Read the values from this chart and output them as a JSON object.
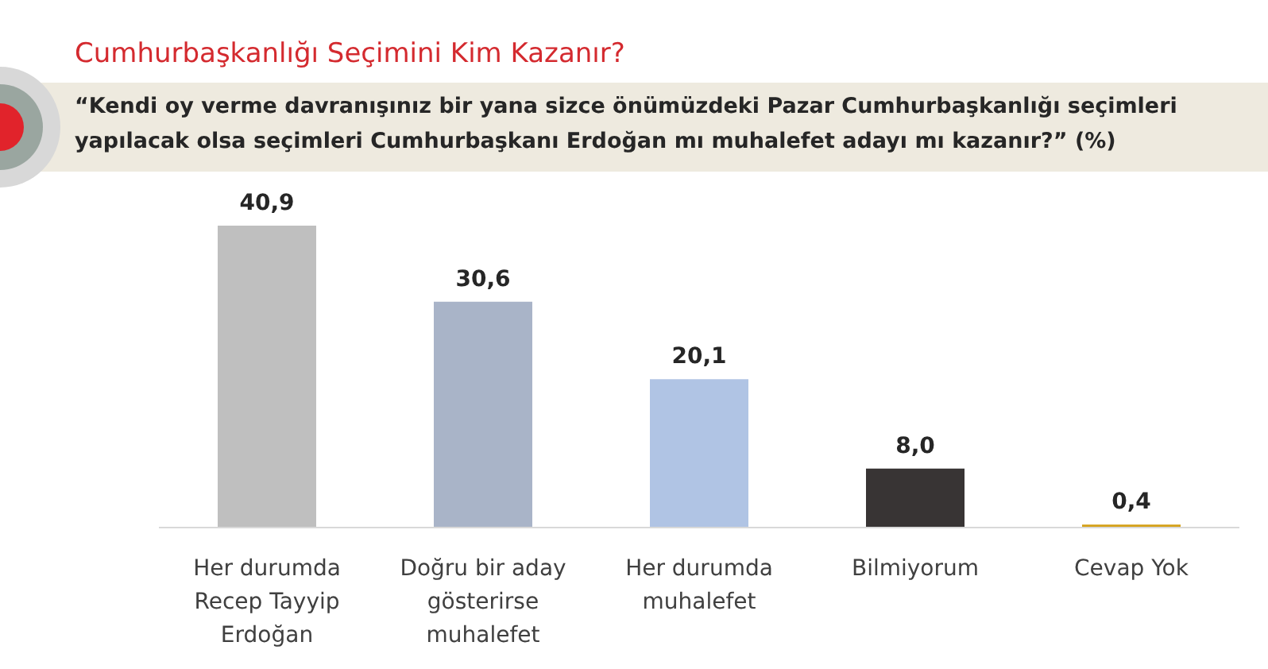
{
  "chart_data": {
    "type": "bar",
    "title": "Cumhurbaşkanlığı Seçimini Kim Kazanır?",
    "subtitle": "“Kendi oy verme davranışınız bir yana sizce önümüzdeki Pazar Cumhurbaşkanlığı seçimleri yapılacak olsa seçimleri Cumhurbaşkanı Erdoğan mı muhalefet adayı mı kazanır?” (%)",
    "categories": [
      "Her durumda Recep Tayyip Erdoğan",
      "Doğru bir aday gösterirse muhalefet",
      "Her durumda muhalefet",
      "Bilmiyorum",
      "Cevap Yok"
    ],
    "values": [
      40.9,
      30.6,
      20.1,
      8.0,
      0.4
    ],
    "value_labels": [
      "40,9",
      "30,6",
      "20,1",
      "8,0",
      "0,4"
    ],
    "colors": [
      "#bfbfbf",
      "#a9b4c8",
      "#b0c4e4",
      "#383434",
      "#d4a017"
    ]
  }
}
